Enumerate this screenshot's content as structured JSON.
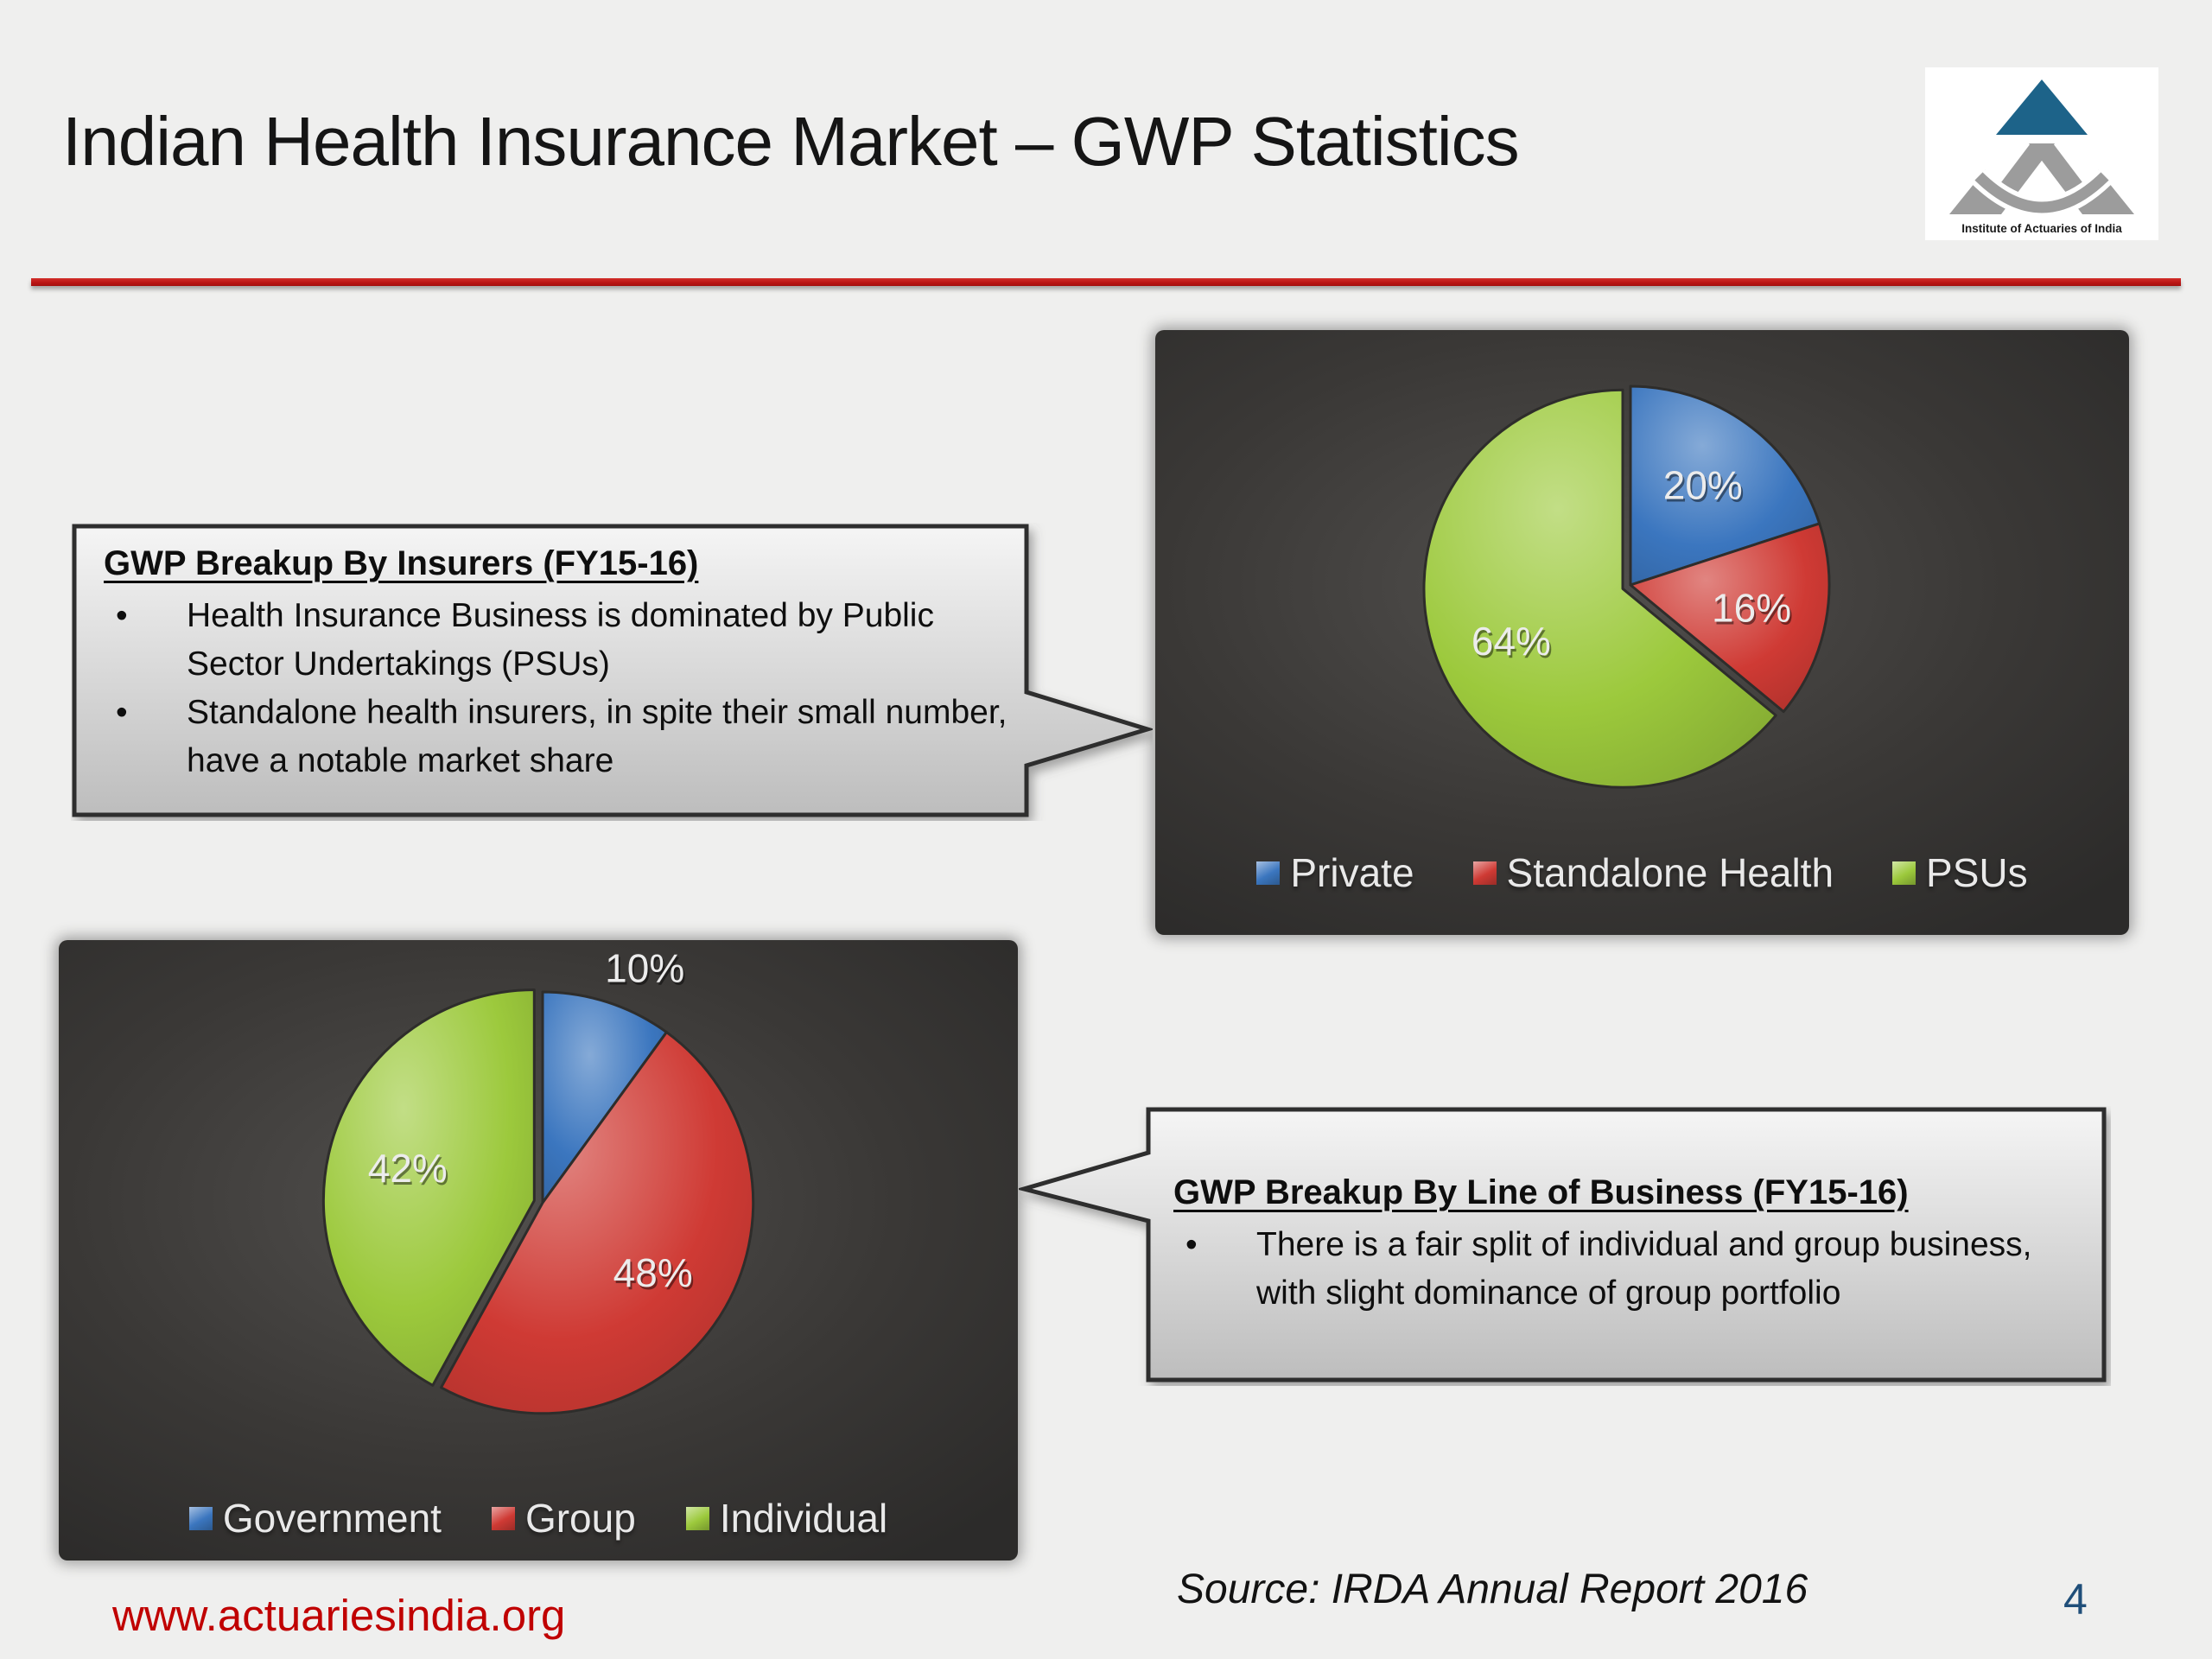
{
  "slide": {
    "title": "Indian Health Insurance Market – GWP Statistics",
    "page_number": "4",
    "source_text": "Source: IRDA Annual Report 2016",
    "website": "www.actuariesindia.org",
    "colors": {
      "title_rule_red": "#b81414",
      "website_red": "#c00000",
      "page_number_blue": "#1f4e79",
      "panel_background": "#3a3836"
    }
  },
  "logo": {
    "caption": "Institute of Actuaries of India",
    "triangle_blue": "#1d6389",
    "gray": "#9c9c9c"
  },
  "callouts": {
    "insurers": {
      "title": "GWP Breakup By Insurers (FY15-16)",
      "bullets": [
        "Health Insurance Business is dominated by Public Sector Undertakings (PSUs)",
        "Standalone health insurers, in spite their small number, have a notable market share"
      ]
    },
    "line_of_business": {
      "title": "GWP Breakup By Line of Business (FY15-16)",
      "bullets": [
        "There is a fair split of individual and group business, with slight dominance of group portfolio"
      ]
    }
  },
  "chart_data": [
    {
      "type": "pie",
      "title": "GWP Breakup By Insurers (FY15-16)",
      "labels": [
        "Private",
        "Standalone Health",
        "PSUs"
      ],
      "values": [
        20,
        16,
        64
      ],
      "value_labels": [
        "20%",
        "16%",
        "64%"
      ],
      "colors": [
        "#3b76bf",
        "#cf3a34",
        "#9cc93c"
      ],
      "label_placement": [
        "inside",
        "inside",
        "inside"
      ],
      "exploded_slice_index": 2,
      "legend_position": "bottom"
    },
    {
      "type": "pie",
      "title": "GWP Breakup By Line of Business (FY15-16)",
      "labels": [
        "Government",
        "Group",
        "Individual"
      ],
      "values": [
        10,
        48,
        42
      ],
      "value_labels": [
        "10%",
        "48%",
        "42%"
      ],
      "colors": [
        "#3b76bf",
        "#cf3a34",
        "#9cc93c"
      ],
      "label_placement": [
        "outside",
        "inside",
        "inside"
      ],
      "exploded_slice_index": 2,
      "legend_position": "bottom"
    }
  ]
}
